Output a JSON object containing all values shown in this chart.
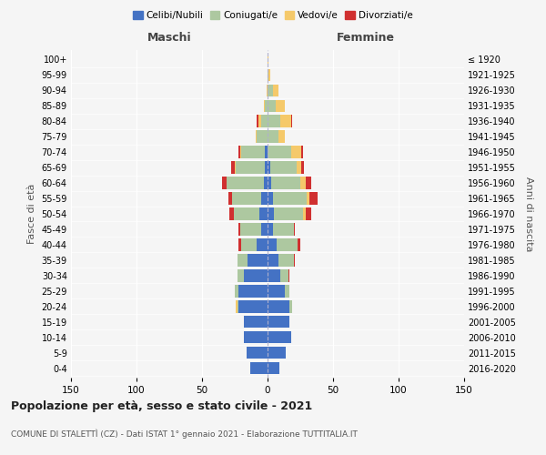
{
  "age_groups": [
    "0-4",
    "5-9",
    "10-14",
    "15-19",
    "20-24",
    "25-29",
    "30-34",
    "35-39",
    "40-44",
    "45-49",
    "50-54",
    "55-59",
    "60-64",
    "65-69",
    "70-74",
    "75-79",
    "80-84",
    "85-89",
    "90-94",
    "95-99",
    "100+"
  ],
  "birth_years": [
    "2016-2020",
    "2011-2015",
    "2006-2010",
    "2001-2005",
    "1996-2000",
    "1991-1995",
    "1986-1990",
    "1981-1985",
    "1976-1980",
    "1971-1975",
    "1966-1970",
    "1961-1965",
    "1956-1960",
    "1951-1955",
    "1946-1950",
    "1941-1945",
    "1936-1940",
    "1931-1935",
    "1926-1930",
    "1921-1925",
    "≤ 1920"
  ],
  "maschi": {
    "celibi": [
      13,
      16,
      18,
      18,
      22,
      22,
      18,
      15,
      8,
      5,
      6,
      5,
      3,
      2,
      2,
      0,
      0,
      0,
      0,
      0,
      0
    ],
    "coniugati": [
      0,
      0,
      0,
      0,
      1,
      3,
      5,
      8,
      12,
      16,
      20,
      22,
      28,
      22,
      18,
      8,
      5,
      2,
      0,
      0,
      0
    ],
    "vedovi": [
      0,
      0,
      0,
      0,
      1,
      0,
      0,
      0,
      0,
      0,
      0,
      0,
      0,
      1,
      1,
      1,
      2,
      1,
      1,
      0,
      0
    ],
    "divorziati": [
      0,
      0,
      0,
      0,
      0,
      0,
      0,
      0,
      2,
      1,
      3,
      3,
      4,
      3,
      1,
      0,
      1,
      0,
      0,
      0,
      0
    ]
  },
  "femmine": {
    "nubili": [
      9,
      14,
      18,
      17,
      17,
      13,
      10,
      8,
      7,
      4,
      5,
      4,
      3,
      2,
      0,
      0,
      0,
      0,
      0,
      0,
      0
    ],
    "coniugate": [
      0,
      0,
      0,
      0,
      2,
      4,
      6,
      12,
      16,
      16,
      22,
      26,
      22,
      20,
      18,
      8,
      10,
      6,
      4,
      1,
      0
    ],
    "vedove": [
      0,
      0,
      0,
      0,
      0,
      0,
      0,
      0,
      0,
      0,
      2,
      2,
      4,
      4,
      8,
      5,
      8,
      7,
      4,
      1,
      1
    ],
    "divorziate": [
      0,
      0,
      0,
      0,
      0,
      0,
      1,
      1,
      2,
      1,
      4,
      6,
      4,
      2,
      1,
      0,
      1,
      0,
      0,
      0,
      0
    ]
  },
  "colors": {
    "celibi": "#4472c4",
    "coniugati": "#adc8a0",
    "vedovi": "#f5c96a",
    "divorziati": "#d03030"
  },
  "legend_labels": [
    "Celibi/Nubili",
    "Coniugati/e",
    "Vedovi/e",
    "Divorziati/e"
  ],
  "title": "Popolazione per età, sesso e stato civile - 2021",
  "subtitle": "COMUNE DI STALETÌTÌ (CZ) - Dati ISTAT 1° gennaio 2021 - Elaborazione TUTTITALIA.IT",
  "xlabel_left": "Maschi",
  "xlabel_right": "Femmine",
  "ylabel_left": "Fasce di età",
  "ylabel_right": "Anni di nascita",
  "xlim": 150,
  "bg_color": "#f5f5f5"
}
